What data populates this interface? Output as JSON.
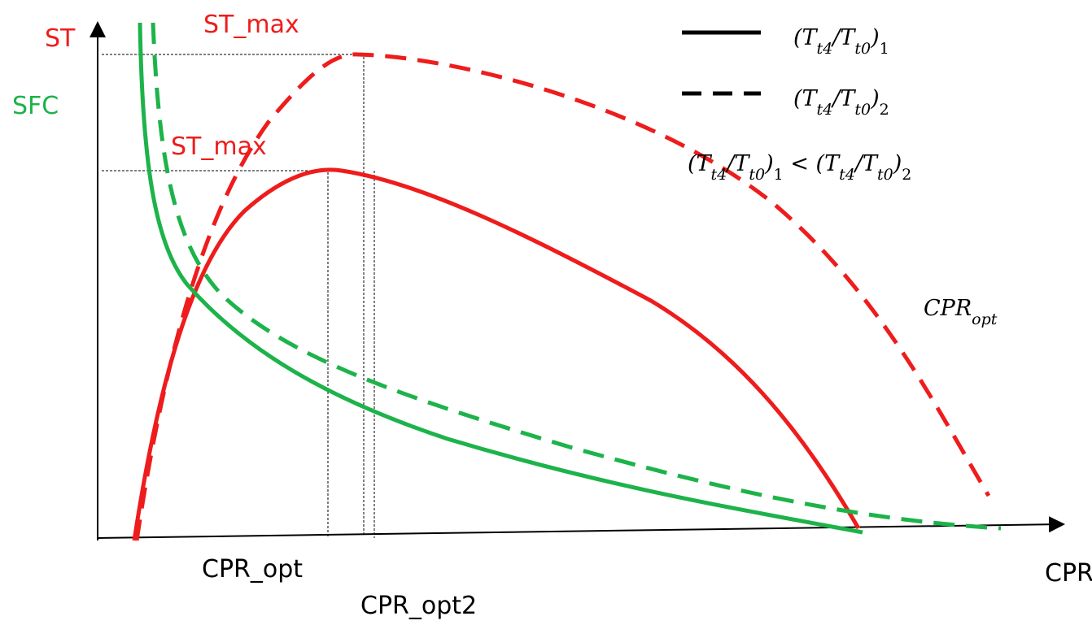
{
  "axis_labels": {
    "y_top": "ST",
    "y_second": "SFC",
    "x": "CPR"
  },
  "annotations": {
    "st_max_1": "ST_max",
    "st_max_2": "ST_max",
    "cpr_opt": "CPR_opt",
    "cpr_opt2": "CPR_opt2"
  },
  "legend": [
    {
      "parts": [
        {
          "t": "(T"
        },
        {
          "sub": "t4"
        },
        {
          "t": "/T"
        },
        {
          "sub": "t0"
        },
        {
          "t": ")"
        },
        {
          "sub": "1"
        }
      ]
    },
    {
      "parts": [
        {
          "t": "(T"
        },
        {
          "sub": "t4"
        },
        {
          "t": "/T"
        },
        {
          "sub": "t0"
        },
        {
          "t": ")"
        },
        {
          "sub": "2"
        }
      ]
    }
  ],
  "relation": {
    "parts": [
      {
        "t": "(T"
      },
      {
        "sub": "t4"
      },
      {
        "t": "/T"
      },
      {
        "sub": "t0"
      },
      {
        "t": ")"
      },
      {
        "sub": "1"
      },
      {
        "t": " < (T"
      },
      {
        "sub": "t4"
      },
      {
        "t": "/T"
      },
      {
        "sub": "t0"
      },
      {
        "t": ")"
      },
      {
        "sub": "2"
      }
    ]
  },
  "cpr_opt_math": {
    "parts": [
      {
        "t": "CPR"
      },
      {
        "sub": "opt"
      }
    ]
  }
}
